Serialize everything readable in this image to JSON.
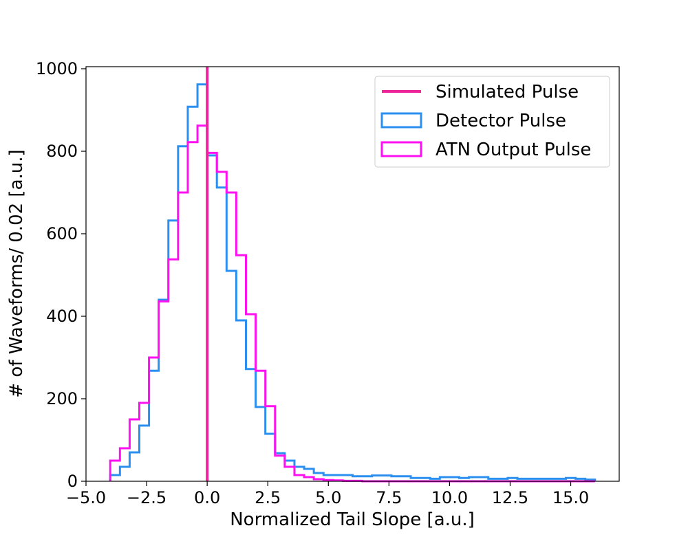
{
  "chart_data": {
    "type": "histogram",
    "xlabel": "Normalized Tail Slope [a.u.]",
    "ylabel": "# of Waveforms/ 0.02 [a.u.]",
    "xlim": [
      -5.0,
      17.0
    ],
    "ylim": [
      0,
      1000
    ],
    "xticks": [
      -5.0,
      -2.5,
      0.0,
      2.5,
      5.0,
      7.5,
      10.0,
      12.5,
      15.0
    ],
    "xtick_labels": [
      "−5.0",
      "−2.5",
      "0.0",
      "2.5",
      "5.0",
      "7.5",
      "10.0",
      "12.5",
      "15.0"
    ],
    "yticks": [
      0,
      200,
      400,
      600,
      800,
      1000
    ],
    "ytick_labels": [
      "0",
      "200",
      "400",
      "600",
      "800",
      "1000"
    ],
    "grid": false,
    "legend_position": "top-right",
    "bin_start": -4.0,
    "bin_width": 0.4,
    "series": [
      {
        "name": "Detector Pulse",
        "style": "step",
        "color": "#2b8ff0",
        "values": [
          15,
          35,
          70,
          135,
          268,
          440,
          632,
          812,
          908,
          962,
          790,
          712,
          510,
          390,
          272,
          180,
          115,
          68,
          50,
          35,
          30,
          20,
          15,
          15,
          15,
          12,
          12,
          14,
          14,
          12,
          12,
          8,
          8,
          6,
          10,
          10,
          8,
          10,
          10,
          6,
          6,
          8,
          6,
          6,
          6,
          6,
          6,
          8,
          6,
          4
        ]
      },
      {
        "name": "ATN Output Pulse",
        "style": "step",
        "color": "#ff10f0",
        "values": [
          50,
          80,
          150,
          190,
          300,
          436,
          538,
          700,
          822,
          862,
          796,
          750,
          700,
          548,
          405,
          268,
          182,
          62,
          35,
          15,
          10,
          5,
          3,
          2,
          1,
          1,
          0,
          0,
          0,
          0,
          0,
          0,
          0,
          0,
          0,
          0,
          0,
          0,
          0,
          0,
          0,
          0,
          0,
          0,
          0,
          0,
          0,
          0,
          0,
          0
        ]
      },
      {
        "name": "Simulated Pulse",
        "style": "vline",
        "color": "#f0249a",
        "x": 0.0
      }
    ]
  }
}
